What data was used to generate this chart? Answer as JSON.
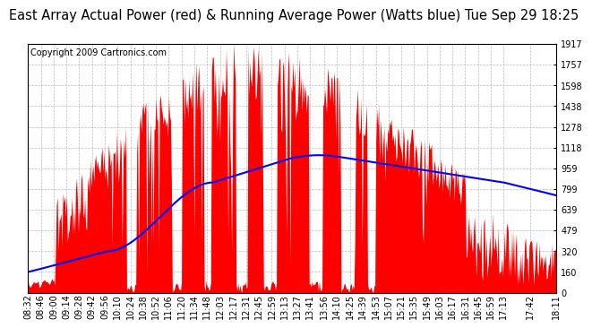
{
  "title": "East Array Actual Power (red) & Running Average Power (Watts blue) Tue Sep 29 18:25",
  "copyright": "Copyright 2009 Cartronics.com",
  "yticks": [
    0.0,
    159.8,
    319.5,
    479.3,
    639.0,
    798.8,
    958.6,
    1118.3,
    1278.1,
    1437.8,
    1597.6,
    1757.4,
    1917.1
  ],
  "ymax": 1917.1,
  "ymin": 0.0,
  "background_color": "#ffffff",
  "grid_color": "#aaaaaa",
  "bar_color": "#ff0000",
  "line_color": "#0000ff",
  "title_fontsize": 10.5,
  "copyright_fontsize": 7,
  "tick_fontsize": 7,
  "x_labels": [
    "08:32",
    "08:46",
    "09:00",
    "09:14",
    "09:28",
    "09:42",
    "09:56",
    "10:10",
    "10:24",
    "10:38",
    "10:52",
    "11:06",
    "11:20",
    "11:34",
    "11:48",
    "12:03",
    "12:17",
    "12:31",
    "12:45",
    "12:59",
    "13:13",
    "13:27",
    "13:41",
    "13:56",
    "14:10",
    "14:25",
    "14:39",
    "14:53",
    "15:07",
    "15:21",
    "15:35",
    "15:49",
    "16:03",
    "16:17",
    "16:31",
    "16:45",
    "16:59",
    "17:13",
    "17:42",
    "18:11"
  ]
}
